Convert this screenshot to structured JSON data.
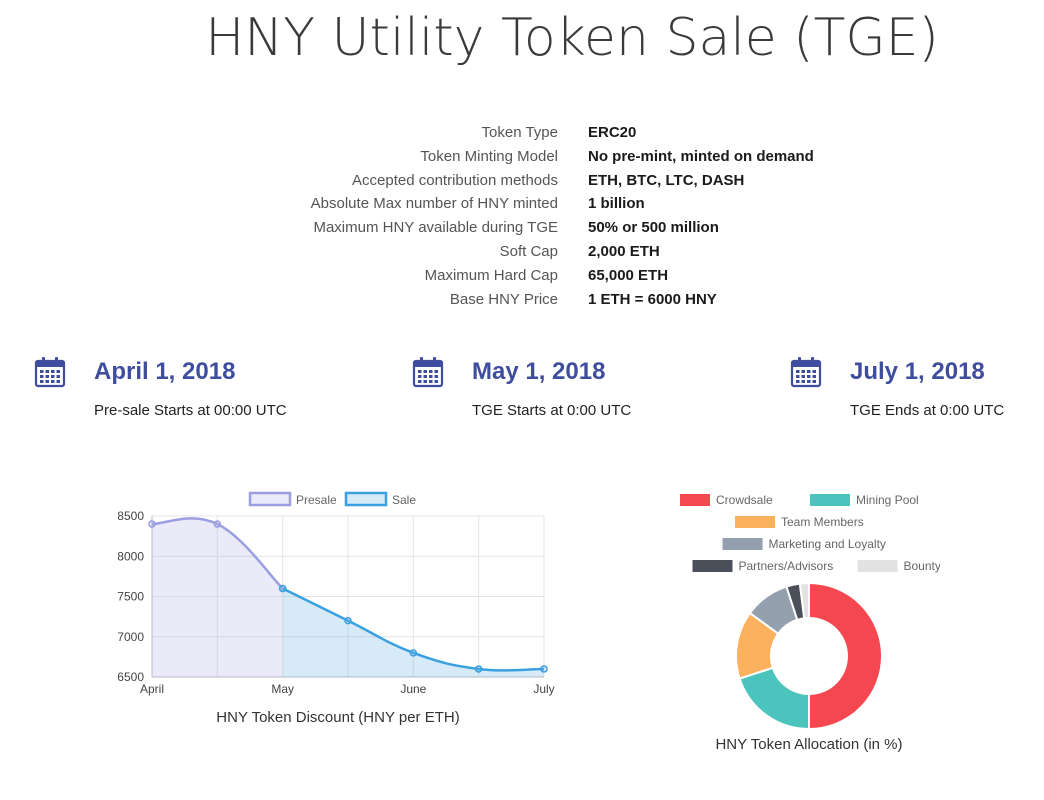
{
  "page_title": "HNY Utility Token Sale (TGE)",
  "specs": [
    {
      "label": "Token Type",
      "value": "ERC20"
    },
    {
      "label": "Token Minting Model",
      "value": "No pre-mint, minted on demand"
    },
    {
      "label": "Accepted contribution methods",
      "value": "ETH, BTC, LTC, DASH"
    },
    {
      "label": "Absolute Max number of HNY minted",
      "value": "1 billion"
    },
    {
      "label": "Maximum HNY available during TGE",
      "value": "50% or 500 million"
    },
    {
      "label": "Soft Cap",
      "value": "2,000 ETH"
    },
    {
      "label": "Maximum Hard Cap",
      "value": "65,000 ETH"
    },
    {
      "label": "Base HNY Price",
      "value": "1 ETH = 6000 HNY"
    }
  ],
  "dates": [
    {
      "date": "April 1, 2018",
      "subtitle": "Pre-sale Starts at 00:00 UTC"
    },
    {
      "date": "May 1, 2018",
      "subtitle": "TGE Starts at 0:00 UTC"
    },
    {
      "date": "July 1, 2018",
      "subtitle": "TGE Ends at 0:00 UTC"
    }
  ],
  "icons": {
    "calendar": "calendar-icon",
    "icon_color": "#3f4d9e"
  },
  "chart_data": [
    {
      "type": "line",
      "title": "HNY Token Discount (HNY per ETH)",
      "xlabel": "",
      "ylabel": "",
      "categories": [
        "April",
        "",
        "May",
        "",
        "June",
        "",
        "July"
      ],
      "y_ticks": [
        6500,
        7000,
        7500,
        8000,
        8500
      ],
      "ylim": [
        6500,
        8500
      ],
      "grid": true,
      "legend_position": "top",
      "series": [
        {
          "name": "Presale",
          "color": "#9b9ee0",
          "fill": "rgba(170,170,230,0.25)",
          "values": [
            8400,
            8400,
            7600,
            null,
            null,
            null,
            null
          ]
        },
        {
          "name": "Sale",
          "color": "#3aa0e0",
          "fill": "rgba(110,180,230,0.28)",
          "values": [
            null,
            null,
            7600,
            7200,
            6800,
            6600,
            6600
          ]
        }
      ]
    },
    {
      "type": "pie",
      "title": "HNY Token Allocation (in %)",
      "legend_position": "top",
      "slices": [
        {
          "name": "Crowdsale",
          "value": 50,
          "color": "#f4474f"
        },
        {
          "name": "Mining Pool",
          "value": 20,
          "color": "#4cc4be"
        },
        {
          "name": "Team Members",
          "value": 15,
          "color": "#fbb15e"
        },
        {
          "name": "Marketing and Loyalty",
          "value": 10,
          "color": "#95a0ae"
        },
        {
          "name": "Partners/Advisors",
          "value": 3,
          "color": "#4a4f5a"
        },
        {
          "name": "Bounty",
          "value": 2,
          "color": "#e2e2e2"
        }
      ]
    }
  ]
}
